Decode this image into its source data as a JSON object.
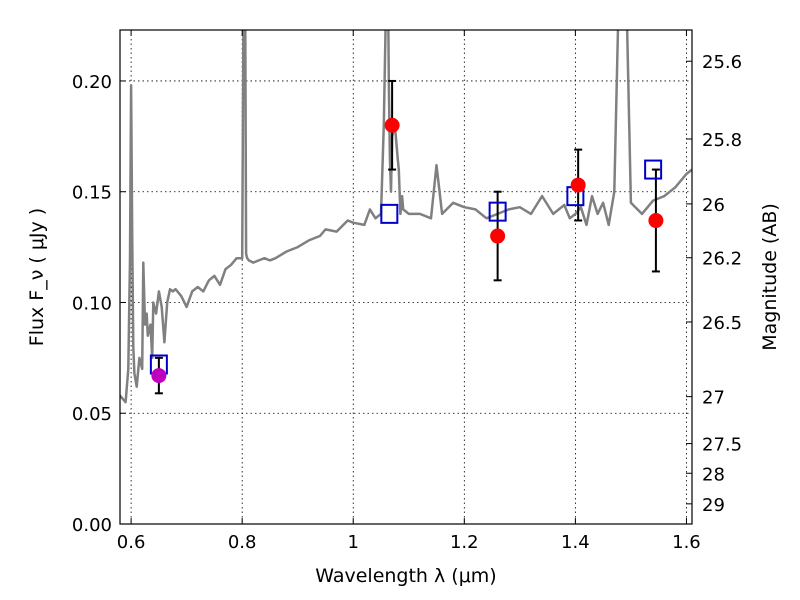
{
  "chart_data": {
    "type": "scatter",
    "xlabel": "Wavelength  λ (μm)",
    "ylabel": "Flux  F_ν  ( μJy )",
    "ylabel_right": "Magnitude (AB)",
    "xlim": [
      0.58,
      1.61
    ],
    "ylim": [
      0.0,
      0.223
    ],
    "grid": true,
    "x_ticks": [
      "0.6",
      "0.8",
      "1",
      "1.2",
      "1.4",
      "1.6"
    ],
    "x_tick_values": [
      0.6,
      0.8,
      1.0,
      1.2,
      1.4,
      1.6
    ],
    "y_ticks": [
      "0.00",
      "0.05",
      "0.10",
      "0.15",
      "0.20"
    ],
    "y_tick_values": [
      0.0,
      0.05,
      0.1,
      0.15,
      0.2
    ],
    "right_ticks": [
      {
        "label": "25.6",
        "flux": 0.2089
      },
      {
        "label": "25.8",
        "flux": 0.1738
      },
      {
        "label": "26",
        "flux": 0.1445
      },
      {
        "label": "26.2",
        "flux": 0.1202
      },
      {
        "label": "26.5",
        "flux": 0.0912
      },
      {
        "label": "27",
        "flux": 0.0575
      },
      {
        "label": "27.5",
        "flux": 0.0363
      },
      {
        "label": "28",
        "flux": 0.0229
      },
      {
        "label": "29",
        "flux": 0.0091
      }
    ],
    "series": [
      {
        "name": "model spectrum",
        "style": "line",
        "color": "#808080",
        "x": [
          0.58,
          0.59,
          0.595,
          0.598,
          0.6,
          0.602,
          0.604,
          0.606,
          0.61,
          0.615,
          0.62,
          0.622,
          0.625,
          0.628,
          0.63,
          0.635,
          0.638,
          0.64,
          0.645,
          0.65,
          0.655,
          0.66,
          0.665,
          0.67,
          0.675,
          0.68,
          0.69,
          0.7,
          0.71,
          0.72,
          0.73,
          0.74,
          0.75,
          0.76,
          0.77,
          0.78,
          0.79,
          0.8,
          0.803,
          0.805,
          0.807,
          0.809,
          0.812,
          0.82,
          0.83,
          0.84,
          0.85,
          0.86,
          0.88,
          0.9,
          0.92,
          0.94,
          0.95,
          0.97,
          0.99,
          1.0,
          1.02,
          1.03,
          1.04,
          1.05,
          1.055,
          1.06,
          1.062,
          1.064,
          1.066,
          1.068,
          1.07,
          1.075,
          1.08,
          1.082,
          1.085,
          1.088,
          1.09,
          1.1,
          1.12,
          1.14,
          1.15,
          1.16,
          1.18,
          1.2,
          1.22,
          1.24,
          1.26,
          1.28,
          1.3,
          1.32,
          1.34,
          1.36,
          1.38,
          1.39,
          1.4,
          1.41,
          1.42,
          1.43,
          1.44,
          1.45,
          1.46,
          1.47,
          1.48,
          1.49,
          1.5,
          1.52,
          1.54,
          1.56,
          1.58,
          1.6,
          1.61
        ],
        "y": [
          0.058,
          0.055,
          0.07,
          0.12,
          0.198,
          0.13,
          0.08,
          0.068,
          0.062,
          0.075,
          0.07,
          0.118,
          0.09,
          0.095,
          0.085,
          0.09,
          0.075,
          0.1,
          0.095,
          0.105,
          0.098,
          0.082,
          0.1,
          0.106,
          0.105,
          0.106,
          0.103,
          0.098,
          0.105,
          0.107,
          0.105,
          0.11,
          0.112,
          0.108,
          0.115,
          0.117,
          0.12,
          0.12,
          0.26,
          0.26,
          0.122,
          0.12,
          0.119,
          0.118,
          0.119,
          0.12,
          0.119,
          0.12,
          0.123,
          0.125,
          0.128,
          0.13,
          0.133,
          0.132,
          0.137,
          0.136,
          0.135,
          0.142,
          0.138,
          0.14,
          0.18,
          0.25,
          0.26,
          0.2,
          0.165,
          0.15,
          0.175,
          0.18,
          0.165,
          0.16,
          0.14,
          0.148,
          0.142,
          0.14,
          0.14,
          0.138,
          0.162,
          0.14,
          0.145,
          0.143,
          0.142,
          0.138,
          0.14,
          0.142,
          0.143,
          0.14,
          0.148,
          0.14,
          0.144,
          0.138,
          0.14,
          0.143,
          0.135,
          0.148,
          0.14,
          0.145,
          0.135,
          0.15,
          0.26,
          0.26,
          0.145,
          0.14,
          0.146,
          0.148,
          0.152,
          0.158,
          0.16
        ]
      },
      {
        "name": "observed photometry (red)",
        "style": "points",
        "color": "#ff0000",
        "x": [
          1.07,
          1.26,
          1.405,
          1.545
        ],
        "y": [
          0.18,
          0.13,
          0.153,
          0.137
        ],
        "yerr": [
          0.02,
          0.02,
          0.016,
          0.023
        ]
      },
      {
        "name": "observed photometry (magenta)",
        "style": "points",
        "color": "#bf00bf",
        "x": [
          0.65
        ],
        "y": [
          0.067
        ],
        "yerr": [
          0.008
        ]
      },
      {
        "name": "model bandpass flux",
        "style": "open-squares",
        "color": "#0000cc",
        "x": [
          0.65,
          1.065,
          1.26,
          1.4,
          1.54
        ],
        "y": [
          0.072,
          0.14,
          0.141,
          0.148,
          0.16
        ]
      }
    ]
  }
}
